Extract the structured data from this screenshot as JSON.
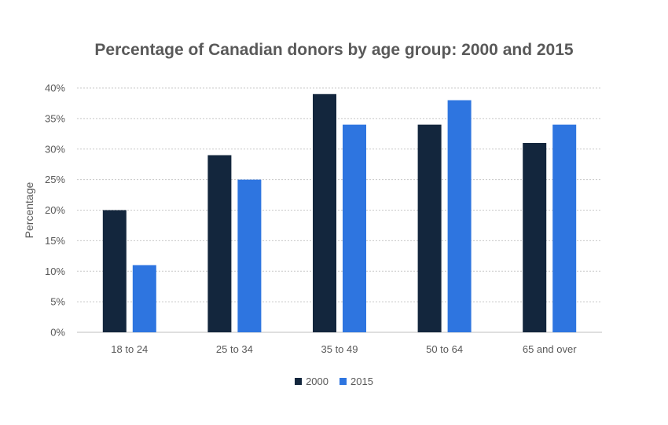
{
  "chart_data": {
    "type": "bar",
    "title": "Percentage of Canadian donors by age group: 2000 and 2015",
    "xlabel": "",
    "ylabel": "Percentage",
    "categories": [
      "18 to 24",
      "25 to 34",
      "35 to 49",
      "50 to 64",
      "65 and over"
    ],
    "series": [
      {
        "name": "2000",
        "color": "#13263d",
        "values": [
          20,
          29,
          39,
          34,
          31
        ]
      },
      {
        "name": "2015",
        "color": "#2e75e0",
        "values": [
          11,
          25,
          34,
          38,
          34
        ]
      }
    ],
    "ylim": [
      0,
      40
    ],
    "yticks": [
      "0%",
      "5%",
      "10%",
      "15%",
      "20%",
      "25%",
      "30%",
      "35%",
      "40%"
    ],
    "grid": true,
    "legend_position": "bottom"
  }
}
